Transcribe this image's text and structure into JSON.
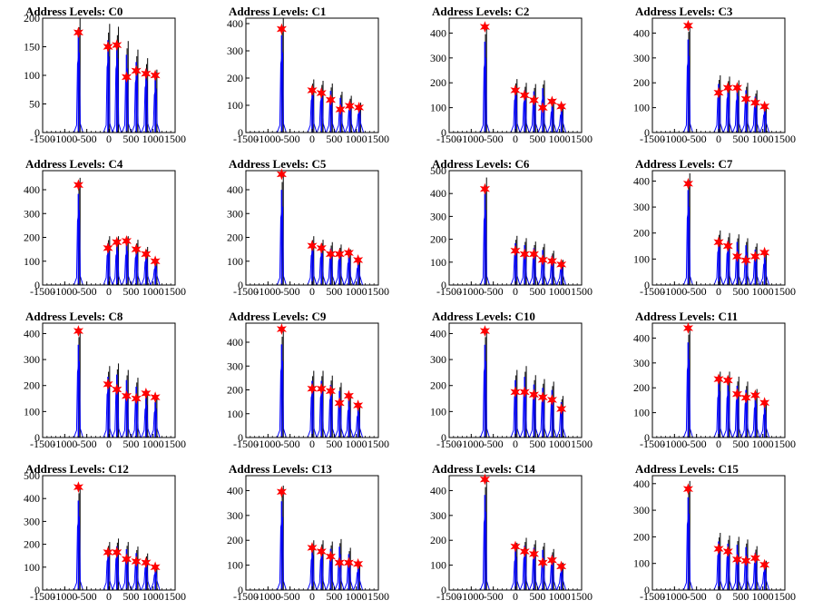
{
  "chart_data": [
    {
      "type": "histogram",
      "title": "Address Levels: C0",
      "xlim": [
        -1500,
        1500
      ],
      "ylim": [
        0,
        200
      ],
      "yticks": [
        0,
        50,
        100,
        150,
        200
      ],
      "xticks": [
        -1500,
        -1000,
        -500,
        0,
        500,
        1000,
        1500
      ],
      "peaks": [
        {
          "x": -690,
          "y": 175,
          "max": 200
        },
        {
          "x": -20,
          "y": 150,
          "max": 190
        },
        {
          "x": 180,
          "y": 153,
          "max": 185
        },
        {
          "x": 400,
          "y": 97,
          "max": 160
        },
        {
          "x": 620,
          "y": 108,
          "max": 145
        },
        {
          "x": 840,
          "y": 103,
          "max": 130
        },
        {
          "x": 1050,
          "y": 100,
          "max": 110
        }
      ]
    },
    {
      "type": "histogram",
      "title": "Address Levels: C1",
      "xlim": [
        -1500,
        1500
      ],
      "ylim": [
        0,
        420
      ],
      "yticks": [
        0,
        100,
        200,
        300,
        400
      ],
      "xticks": [
        -1500,
        -1000,
        -500,
        0,
        500,
        1000,
        1500
      ],
      "peaks": [
        {
          "x": -690,
          "y": 380,
          "max": 420
        },
        {
          "x": 0,
          "y": 155,
          "max": 195
        },
        {
          "x": 210,
          "y": 145,
          "max": 190
        },
        {
          "x": 420,
          "y": 120,
          "max": 180
        },
        {
          "x": 640,
          "y": 85,
          "max": 150
        },
        {
          "x": 850,
          "y": 98,
          "max": 135
        },
        {
          "x": 1060,
          "y": 92,
          "max": 110
        }
      ]
    },
    {
      "type": "histogram",
      "title": "Address Levels: C2",
      "xlim": [
        -1500,
        1500
      ],
      "ylim": [
        0,
        460
      ],
      "yticks": [
        0,
        100,
        200,
        300,
        400
      ],
      "xticks": [
        -1500,
        -1000,
        -500,
        0,
        500,
        1000,
        1500
      ],
      "peaks": [
        {
          "x": -690,
          "y": 425,
          "max": 430
        },
        {
          "x": 0,
          "y": 170,
          "max": 215
        },
        {
          "x": 210,
          "y": 150,
          "max": 200
        },
        {
          "x": 420,
          "y": 130,
          "max": 195
        },
        {
          "x": 620,
          "y": 100,
          "max": 210
        },
        {
          "x": 830,
          "y": 125,
          "max": 135
        },
        {
          "x": 1040,
          "y": 105,
          "max": 115
        }
      ]
    },
    {
      "type": "histogram",
      "title": "Address Levels: C3",
      "xlim": [
        -1500,
        1500
      ],
      "ylim": [
        0,
        460
      ],
      "yticks": [
        0,
        100,
        200,
        300,
        400
      ],
      "xticks": [
        -1500,
        -1000,
        -500,
        0,
        500,
        1000,
        1500
      ],
      "peaks": [
        {
          "x": -690,
          "y": 430,
          "max": 440
        },
        {
          "x": 0,
          "y": 160,
          "max": 230
        },
        {
          "x": 210,
          "y": 180,
          "max": 225
        },
        {
          "x": 420,
          "y": 180,
          "max": 210
        },
        {
          "x": 620,
          "y": 135,
          "max": 200
        },
        {
          "x": 830,
          "y": 120,
          "max": 170
        },
        {
          "x": 1040,
          "y": 105,
          "max": 115
        }
      ]
    },
    {
      "type": "histogram",
      "title": "Address Levels: C4",
      "xlim": [
        -1500,
        1500
      ],
      "ylim": [
        0,
        480
      ],
      "yticks": [
        0,
        100,
        200,
        300,
        400
      ],
      "xticks": [
        -1500,
        -1000,
        -500,
        0,
        500,
        1000,
        1500
      ],
      "peaks": [
        {
          "x": -690,
          "y": 420,
          "max": 450
        },
        {
          "x": -20,
          "y": 155,
          "max": 205
        },
        {
          "x": 180,
          "y": 180,
          "max": 205
        },
        {
          "x": 400,
          "y": 185,
          "max": 205
        },
        {
          "x": 620,
          "y": 150,
          "max": 190
        },
        {
          "x": 840,
          "y": 130,
          "max": 160
        },
        {
          "x": 1050,
          "y": 100,
          "max": 110
        }
      ]
    },
    {
      "type": "histogram",
      "title": "Address Levels: C5",
      "xlim": [
        -1500,
        1500
      ],
      "ylim": [
        0,
        480
      ],
      "yticks": [
        0,
        100,
        200,
        300,
        400
      ],
      "xticks": [
        -1500,
        -1000,
        -500,
        0,
        500,
        1000,
        1500
      ],
      "peaks": [
        {
          "x": -690,
          "y": 465,
          "max": 470
        },
        {
          "x": 0,
          "y": 165,
          "max": 205
        },
        {
          "x": 210,
          "y": 155,
          "max": 190
        },
        {
          "x": 420,
          "y": 130,
          "max": 180
        },
        {
          "x": 620,
          "y": 130,
          "max": 170
        },
        {
          "x": 830,
          "y": 135,
          "max": 150
        },
        {
          "x": 1040,
          "y": 105,
          "max": 115
        }
      ]
    },
    {
      "type": "histogram",
      "title": "Address Levels: C6",
      "xlim": [
        -1500,
        1500
      ],
      "ylim": [
        0,
        500
      ],
      "yticks": [
        0,
        100,
        200,
        300,
        400,
        500
      ],
      "xticks": [
        -1500,
        -1000,
        -500,
        0,
        500,
        1000,
        1500
      ],
      "peaks": [
        {
          "x": -690,
          "y": 420,
          "max": 470
        },
        {
          "x": 0,
          "y": 150,
          "max": 215
        },
        {
          "x": 210,
          "y": 135,
          "max": 205
        },
        {
          "x": 420,
          "y": 135,
          "max": 190
        },
        {
          "x": 620,
          "y": 110,
          "max": 180
        },
        {
          "x": 830,
          "y": 105,
          "max": 150
        },
        {
          "x": 1040,
          "y": 90,
          "max": 110
        }
      ]
    },
    {
      "type": "histogram",
      "title": "Address Levels: C7",
      "xlim": [
        -1500,
        1500
      ],
      "ylim": [
        0,
        440
      ],
      "yticks": [
        0,
        100,
        200,
        300,
        400
      ],
      "xticks": [
        -1500,
        -1000,
        -500,
        0,
        500,
        1000,
        1500
      ],
      "peaks": [
        {
          "x": -690,
          "y": 390,
          "max": 430
        },
        {
          "x": 0,
          "y": 165,
          "max": 210
        },
        {
          "x": 210,
          "y": 150,
          "max": 200
        },
        {
          "x": 420,
          "y": 110,
          "max": 195
        },
        {
          "x": 620,
          "y": 95,
          "max": 180
        },
        {
          "x": 830,
          "y": 110,
          "max": 160
        },
        {
          "x": 1040,
          "y": 125,
          "max": 130
        }
      ]
    },
    {
      "type": "histogram",
      "title": "Address Levels: C8",
      "xlim": [
        -1500,
        1500
      ],
      "ylim": [
        0,
        440
      ],
      "yticks": [
        0,
        100,
        200,
        300,
        400
      ],
      "xticks": [
        -1500,
        -1000,
        -500,
        0,
        500,
        1000,
        1500
      ],
      "peaks": [
        {
          "x": -690,
          "y": 410,
          "max": 420
        },
        {
          "x": -20,
          "y": 205,
          "max": 275
        },
        {
          "x": 180,
          "y": 185,
          "max": 285
        },
        {
          "x": 400,
          "y": 160,
          "max": 260
        },
        {
          "x": 620,
          "y": 150,
          "max": 230
        },
        {
          "x": 840,
          "y": 170,
          "max": 180
        },
        {
          "x": 1050,
          "y": 155,
          "max": 160
        }
      ]
    },
    {
      "type": "histogram",
      "title": "Address Levels: C9",
      "xlim": [
        -1500,
        1500
      ],
      "ylim": [
        0,
        480
      ],
      "yticks": [
        0,
        100,
        200,
        300,
        400
      ],
      "xticks": [
        -1500,
        -1000,
        -500,
        0,
        500,
        1000,
        1500
      ],
      "peaks": [
        {
          "x": -690,
          "y": 455,
          "max": 460
        },
        {
          "x": 0,
          "y": 205,
          "max": 280
        },
        {
          "x": 210,
          "y": 205,
          "max": 280
        },
        {
          "x": 420,
          "y": 195,
          "max": 260
        },
        {
          "x": 620,
          "y": 145,
          "max": 230
        },
        {
          "x": 830,
          "y": 175,
          "max": 185
        },
        {
          "x": 1040,
          "y": 135,
          "max": 145
        }
      ]
    },
    {
      "type": "histogram",
      "title": "Address Levels: C10",
      "xlim": [
        -1500,
        1500
      ],
      "ylim": [
        0,
        440
      ],
      "yticks": [
        0,
        100,
        200,
        300,
        400
      ],
      "xticks": [
        -1500,
        -1000,
        -500,
        0,
        500,
        1000,
        1500
      ],
      "peaks": [
        {
          "x": -690,
          "y": 410,
          "max": 420
        },
        {
          "x": 0,
          "y": 175,
          "max": 260
        },
        {
          "x": 210,
          "y": 175,
          "max": 275
        },
        {
          "x": 420,
          "y": 165,
          "max": 240
        },
        {
          "x": 620,
          "y": 155,
          "max": 225
        },
        {
          "x": 830,
          "y": 145,
          "max": 215
        },
        {
          "x": 1040,
          "y": 110,
          "max": 160
        }
      ]
    },
    {
      "type": "histogram",
      "title": "Address Levels: C11",
      "xlim": [
        -1500,
        1500
      ],
      "ylim": [
        0,
        460
      ],
      "yticks": [
        0,
        100,
        200,
        300,
        400
      ],
      "xticks": [
        -1500,
        -1000,
        -500,
        0,
        500,
        1000,
        1500
      ],
      "peaks": [
        {
          "x": -690,
          "y": 440,
          "max": 450
        },
        {
          "x": 0,
          "y": 235,
          "max": 265
        },
        {
          "x": 210,
          "y": 230,
          "max": 265
        },
        {
          "x": 420,
          "y": 175,
          "max": 245
        },
        {
          "x": 620,
          "y": 160,
          "max": 225
        },
        {
          "x": 830,
          "y": 170,
          "max": 195
        },
        {
          "x": 1040,
          "y": 140,
          "max": 150
        }
      ]
    },
    {
      "type": "histogram",
      "title": "Address Levels: C12",
      "xlim": [
        -1500,
        1500
      ],
      "ylim": [
        0,
        500
      ],
      "yticks": [
        0,
        100,
        200,
        300,
        400,
        500
      ],
      "xticks": [
        -1500,
        -1000,
        -500,
        0,
        500,
        1000,
        1500
      ],
      "peaks": [
        {
          "x": -690,
          "y": 450,
          "max": 460
        },
        {
          "x": -20,
          "y": 165,
          "max": 210
        },
        {
          "x": 180,
          "y": 165,
          "max": 225
        },
        {
          "x": 400,
          "y": 135,
          "max": 210
        },
        {
          "x": 620,
          "y": 125,
          "max": 190
        },
        {
          "x": 840,
          "y": 120,
          "max": 160
        },
        {
          "x": 1050,
          "y": 100,
          "max": 110
        }
      ]
    },
    {
      "type": "histogram",
      "title": "Address Levels: C13",
      "xlim": [
        -1500,
        1500
      ],
      "ylim": [
        0,
        460
      ],
      "yticks": [
        0,
        100,
        200,
        300,
        400
      ],
      "xticks": [
        -1500,
        -1000,
        -500,
        0,
        500,
        1000,
        1500
      ],
      "peaks": [
        {
          "x": -690,
          "y": 395,
          "max": 420
        },
        {
          "x": 0,
          "y": 170,
          "max": 200
        },
        {
          "x": 210,
          "y": 155,
          "max": 200
        },
        {
          "x": 420,
          "y": 135,
          "max": 195
        },
        {
          "x": 620,
          "y": 110,
          "max": 205
        },
        {
          "x": 830,
          "y": 110,
          "max": 170
        },
        {
          "x": 1040,
          "y": 105,
          "max": 115
        }
      ]
    },
    {
      "type": "histogram",
      "title": "Address Levels: C14",
      "xlim": [
        -1500,
        1500
      ],
      "ylim": [
        0,
        460
      ],
      "yticks": [
        0,
        100,
        200,
        300,
        400
      ],
      "xticks": [
        -1500,
        -1000,
        -500,
        0,
        500,
        1000,
        1500
      ],
      "peaks": [
        {
          "x": -690,
          "y": 445,
          "max": 450
        },
        {
          "x": 0,
          "y": 175,
          "max": 190
        },
        {
          "x": 210,
          "y": 155,
          "max": 210
        },
        {
          "x": 420,
          "y": 145,
          "max": 200
        },
        {
          "x": 620,
          "y": 110,
          "max": 190
        },
        {
          "x": 830,
          "y": 120,
          "max": 165
        },
        {
          "x": 1040,
          "y": 95,
          "max": 110
        }
      ]
    },
    {
      "type": "histogram",
      "title": "Address Levels: C15",
      "xlim": [
        -1500,
        1500
      ],
      "ylim": [
        0,
        430
      ],
      "yticks": [
        0,
        100,
        200,
        300,
        400
      ],
      "xticks": [
        -1500,
        -1000,
        -500,
        0,
        500,
        1000,
        1500
      ],
      "peaks": [
        {
          "x": -690,
          "y": 380,
          "max": 410
        },
        {
          "x": 0,
          "y": 155,
          "max": 215
        },
        {
          "x": 210,
          "y": 145,
          "max": 205
        },
        {
          "x": 420,
          "y": 115,
          "max": 200
        },
        {
          "x": 620,
          "y": 110,
          "max": 190
        },
        {
          "x": 830,
          "y": 120,
          "max": 165
        },
        {
          "x": 1040,
          "y": 95,
          "max": 110
        }
      ]
    }
  ],
  "colors": {
    "histogram": "#0000ff",
    "overflow": "#000000",
    "marker": "#ff0000",
    "axis": "#000000"
  }
}
